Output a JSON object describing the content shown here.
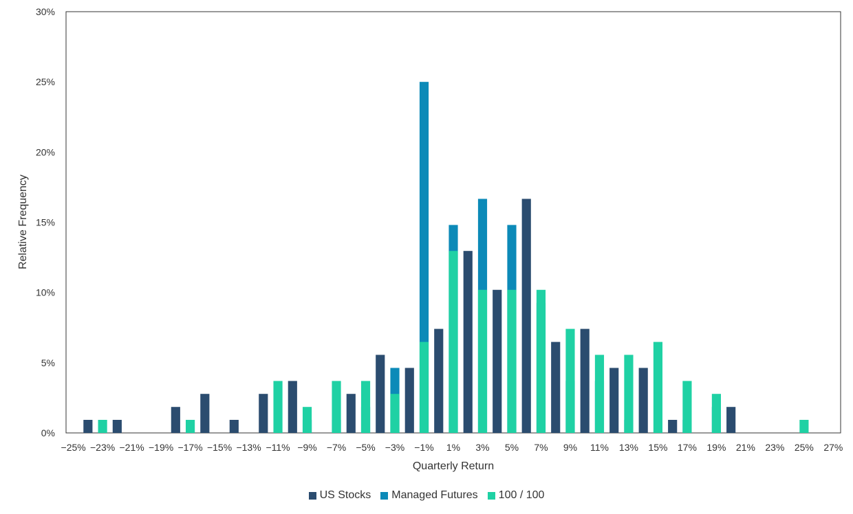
{
  "chart_data": {
    "type": "bar",
    "title": "",
    "xlabel": "Quarterly Return",
    "ylabel": "Relative Frequency",
    "ylim": [
      0,
      30
    ],
    "y_ticks": [
      "0%",
      "5%",
      "10%",
      "15%",
      "20%",
      "25%",
      "30%"
    ],
    "categories": [
      "−25%",
      "−24%",
      "−23%",
      "−22%",
      "−21%",
      "−20%",
      "−19%",
      "−18%",
      "−17%",
      "−16%",
      "−15%",
      "−14%",
      "−13%",
      "−12%",
      "−11%",
      "−10%",
      "−9%",
      "−8%",
      "−7%",
      "−6%",
      "−5%",
      "−4%",
      "−3%",
      "−2%",
      "−1%",
      "0%",
      "1%",
      "2%",
      "3%",
      "4%",
      "5%",
      "6%",
      "7%",
      "8%",
      "9%",
      "10%",
      "11%",
      "12%",
      "13%",
      "14%",
      "15%",
      "16%",
      "17%",
      "18%",
      "19%",
      "20%",
      "21%",
      "22%",
      "23%",
      "24%",
      "25%",
      "26%",
      "27%"
    ],
    "x_tick_labels": [
      "−25%",
      "−23%",
      "−21%",
      "−19%",
      "−17%",
      "−15%",
      "−13%",
      "−11%",
      "−9%",
      "−7%",
      "−5%",
      "−3%",
      "−1%",
      "1%",
      "3%",
      "5%",
      "7%",
      "9%",
      "11%",
      "13%",
      "15%",
      "17%",
      "19%",
      "21%",
      "23%",
      "25%",
      "27%"
    ],
    "series": [
      {
        "name": "US Stocks",
        "color": "#2b4c6f",
        "values": [
          0,
          0.93,
          0,
          0.93,
          0,
          0,
          0,
          1.85,
          0,
          2.78,
          0,
          0.93,
          0,
          2.78,
          0,
          3.7,
          0,
          0,
          0,
          2.78,
          0,
          5.56,
          0,
          4.63,
          0,
          7.41,
          0,
          12.96,
          0,
          10.19,
          0,
          16.67,
          0,
          6.48,
          0,
          7.41,
          0,
          4.63,
          0,
          4.63,
          0,
          0.93,
          0,
          0,
          0,
          1.85,
          0,
          0,
          0,
          0,
          0,
          0,
          0
        ]
      },
      {
        "name": "Managed Futures",
        "color": "#0c8ab8",
        "values": [
          0,
          0,
          0,
          0,
          0,
          0,
          0,
          0,
          0,
          0,
          0,
          0,
          0,
          0,
          0,
          0,
          0.93,
          0,
          0.93,
          0,
          1.85,
          0,
          4.63,
          0,
          25.0,
          0,
          14.81,
          0,
          16.67,
          0,
          14.81,
          0,
          9.26,
          0,
          3.7,
          0,
          3.7,
          0,
          0.93,
          0,
          0,
          0,
          0.93,
          0,
          1.85,
          0,
          0,
          0,
          0,
          0,
          0,
          0,
          0
        ]
      },
      {
        "name": "100 / 100",
        "color": "#1fd1a4",
        "values": [
          0,
          0,
          0.93,
          0,
          0,
          0,
          0,
          0,
          0.93,
          0,
          0,
          0,
          0,
          0,
          3.7,
          0,
          1.85,
          0,
          3.7,
          0,
          3.7,
          0,
          2.78,
          0,
          6.48,
          0,
          12.96,
          0,
          10.19,
          0,
          10.19,
          0,
          10.19,
          0,
          7.41,
          0,
          5.56,
          0,
          5.56,
          0,
          6.48,
          0,
          3.7,
          0,
          2.78,
          0,
          0,
          0,
          0,
          0,
          0.93,
          0,
          0
        ]
      }
    ],
    "legend_position": "bottom-center",
    "grid": false
  }
}
